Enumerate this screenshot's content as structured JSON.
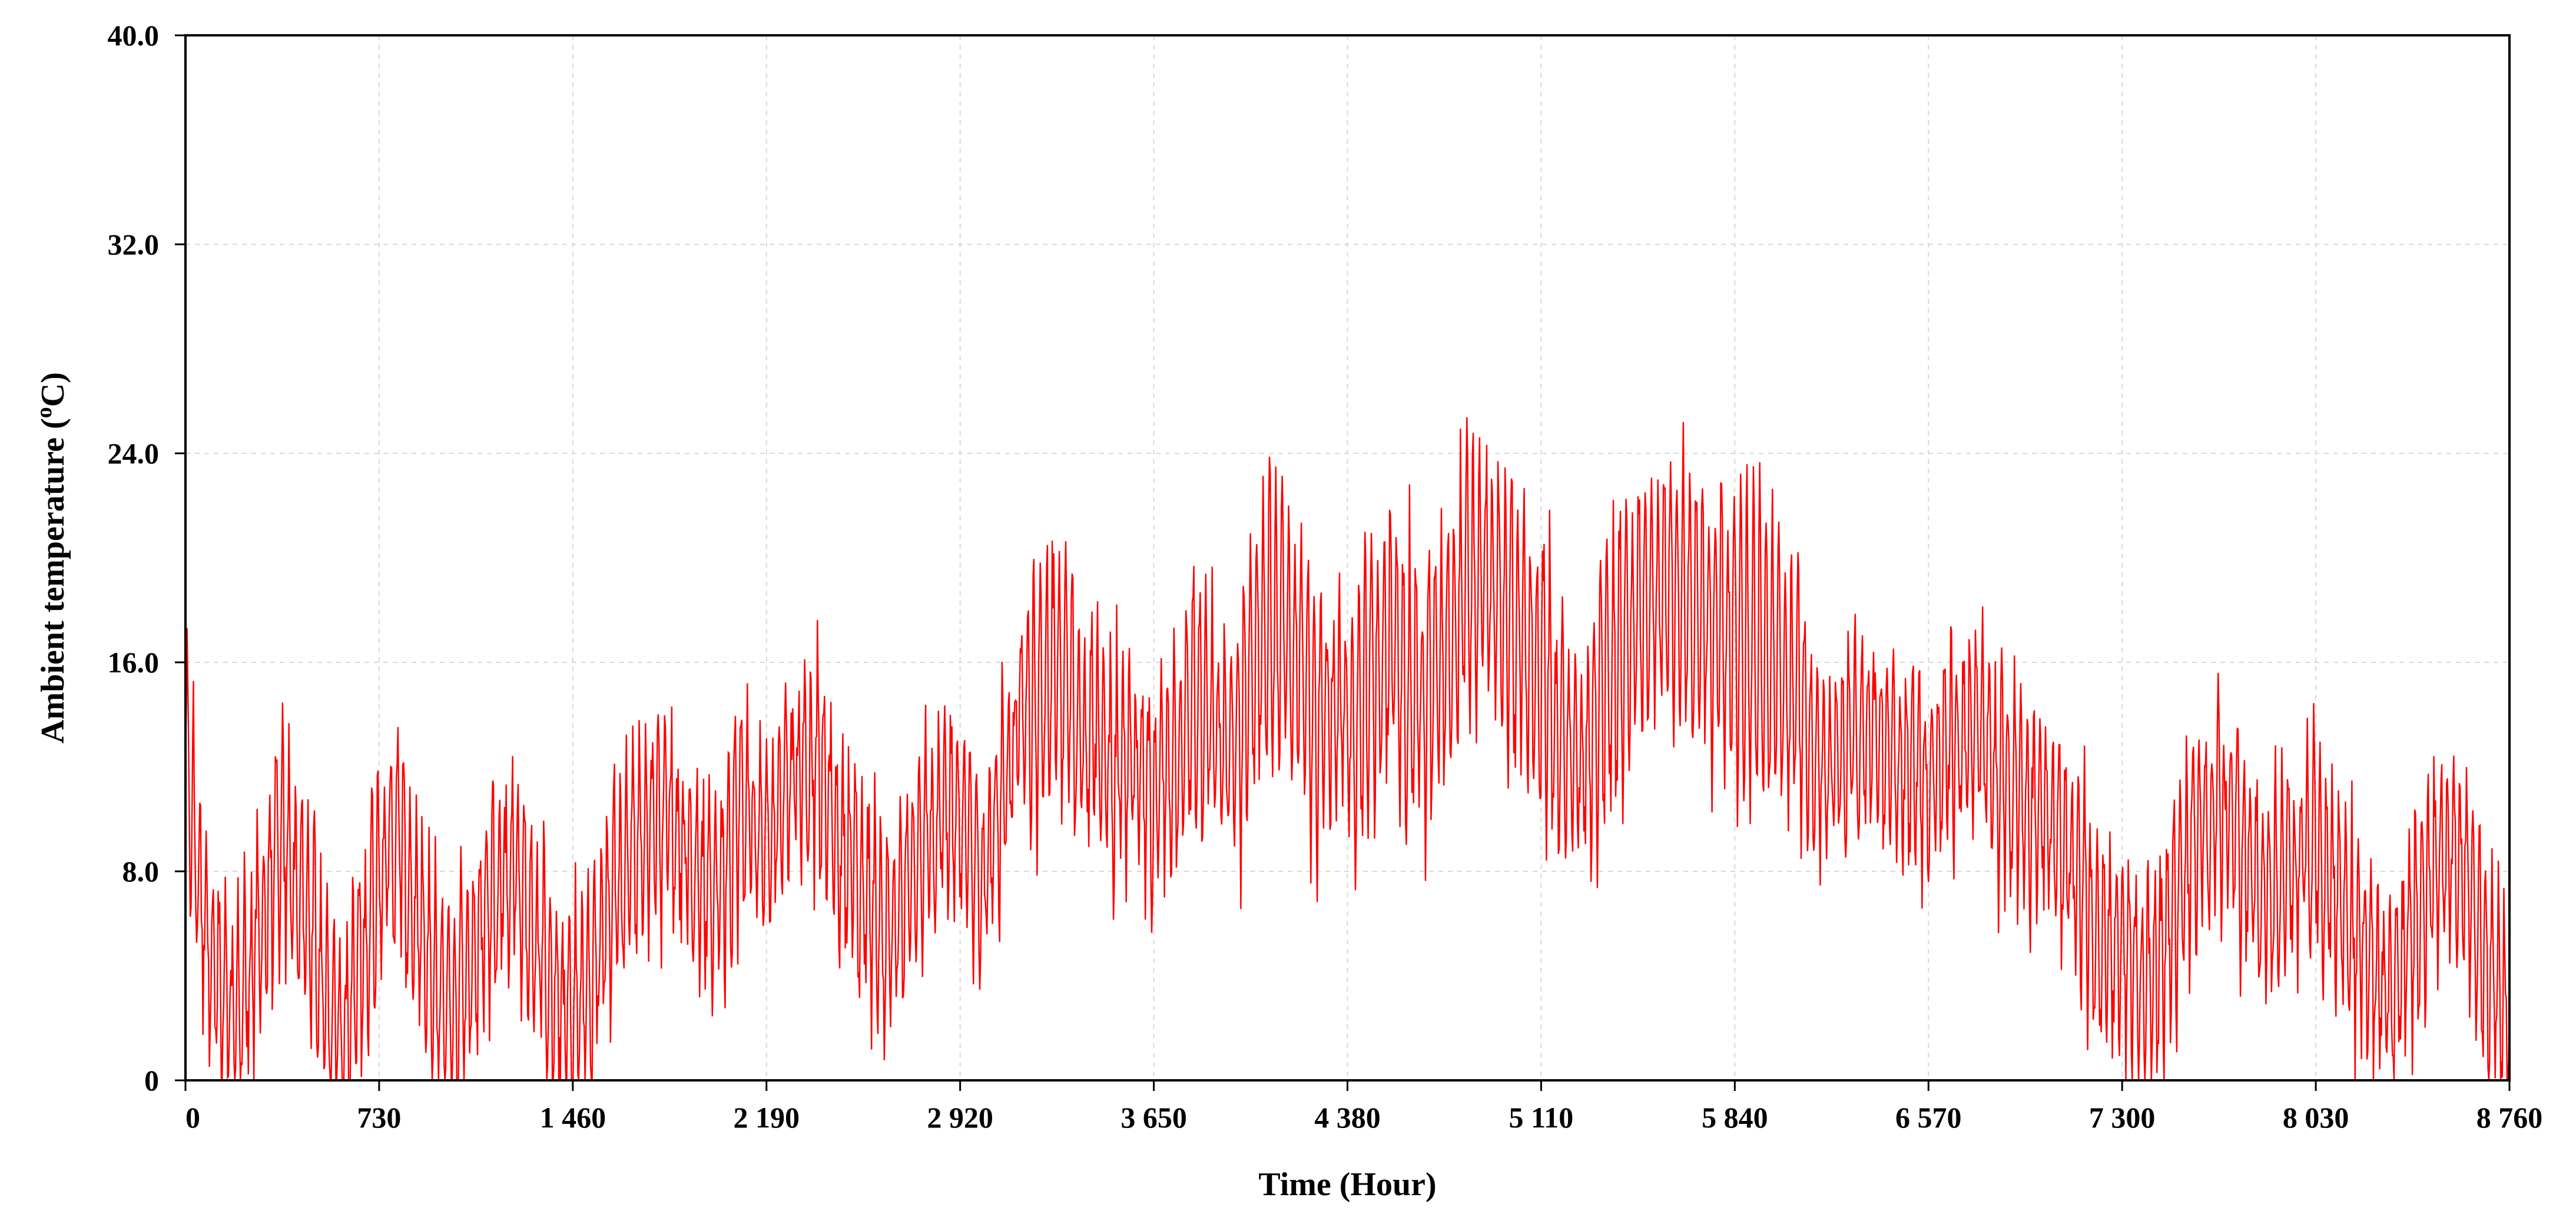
{
  "chart_data": {
    "type": "line",
    "xlabel": "Time (Hour)",
    "ylabel": "Ambient temperature (",
    "ylabel_sup": "o",
    "ylabel_tail": "C)",
    "xlim": [
      0,
      8760
    ],
    "ylim": [
      0,
      40
    ],
    "x_ticks": [
      0,
      730,
      1460,
      2190,
      2920,
      3650,
      4380,
      5110,
      5840,
      6570,
      7300,
      8030,
      8760
    ],
    "x_tick_labels": [
      "0",
      "730",
      "1 460",
      "2 190",
      "2 920",
      "3 650",
      "4 380",
      "5 110",
      "5 840",
      "6 570",
      "7 300",
      "8 030",
      "8 760"
    ],
    "y_ticks": [
      0,
      8,
      16,
      24,
      32,
      40
    ],
    "y_tick_labels": [
      "0",
      "8.0",
      "16.0",
      "24.0",
      "32.0",
      "40.0"
    ],
    "grid": true,
    "line_color": "#ff0000",
    "series": [
      {
        "x": [
          0,
          60,
          120,
          180,
          240,
          300,
          365,
          420,
          480,
          540,
          600,
          660,
          730,
          800,
          870,
          940,
          1010,
          1095,
          1170,
          1240,
          1310,
          1390,
          1460,
          1540,
          1620,
          1700,
          1780,
          1860,
          1940,
          2020,
          2100,
          2190,
          2260,
          2330,
          2400,
          2470,
          2555,
          2630,
          2700,
          2780,
          2850,
          2920,
          3000,
          3070,
          3140,
          3210,
          3285,
          3360,
          3430,
          3500,
          3580,
          3650,
          3730,
          3800,
          3870,
          3940,
          4015,
          4090,
          4160,
          4230,
          4300,
          4380,
          4460,
          4530,
          4600,
          4670,
          4745,
          4820,
          4890,
          4960,
          5030,
          5110,
          5190,
          5260,
          5330,
          5400,
          5475,
          5550,
          5620,
          5690,
          5760,
          5840,
          5920,
          5990,
          6060,
          6130,
          6205,
          6280,
          6350,
          6420,
          6490,
          6570,
          6650,
          6720,
          6790,
          6860,
          6935,
          7010,
          7080,
          7150,
          7220,
          7300,
          7380,
          7450,
          7520,
          7590,
          7665,
          7740,
          7810,
          7880,
          7950,
          8030,
          8110,
          8180,
          8250,
          8320,
          8395,
          8470,
          8540,
          8610,
          8680,
          8760
        ],
        "y": [
          12.5,
          7.0,
          3.5,
          2.0,
          4.0,
          6.5,
          9.0,
          7.5,
          5.5,
          3.0,
          1.5,
          4.5,
          8.0,
          9.5,
          6.0,
          3.5,
          2.5,
          5.0,
          7.5,
          8.5,
          5.5,
          3.0,
          2.5,
          4.0,
          7.5,
          9.0,
          10.5,
          9.5,
          7.0,
          8.0,
          10.5,
          9.0,
          11.0,
          12.5,
          11.5,
          9.0,
          7.5,
          5.5,
          6.5,
          8.5,
          10.5,
          9.5,
          8.0,
          10.0,
          13.5,
          14.5,
          15.5,
          14.0,
          13.0,
          12.0,
          11.5,
          11.0,
          12.5,
          14.5,
          13.5,
          12.5,
          15.5,
          17.5,
          16.5,
          15.0,
          14.0,
          13.5,
          15.0,
          16.5,
          15.5,
          14.5,
          16.0,
          18.5,
          19.5,
          18.0,
          17.0,
          15.5,
          13.0,
          12.0,
          14.5,
          16.5,
          17.5,
          18.5,
          19.0,
          18.0,
          17.5,
          17.0,
          16.5,
          15.5,
          14.5,
          13.0,
          12.0,
          12.5,
          13.5,
          13.0,
          12.0,
          11.5,
          12.5,
          13.5,
          12.5,
          11.5,
          11.0,
          10.0,
          8.5,
          7.0,
          5.5,
          4.5,
          3.5,
          5.0,
          7.5,
          9.5,
          10.5,
          9.0,
          7.5,
          7.0,
          8.5,
          9.0,
          7.5,
          5.5,
          4.0,
          3.5,
          5.5,
          8.0,
          9.0,
          7.0,
          4.0,
          2.5
        ]
      }
    ]
  }
}
